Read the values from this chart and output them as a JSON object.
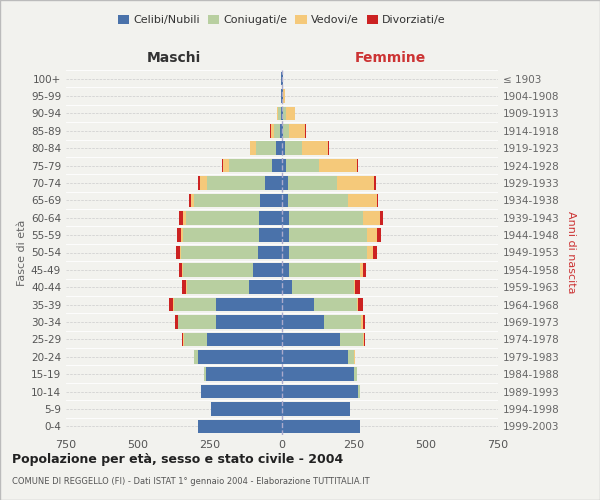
{
  "age_groups": [
    "0-4",
    "5-9",
    "10-14",
    "15-19",
    "20-24",
    "25-29",
    "30-34",
    "35-39",
    "40-44",
    "45-49",
    "50-54",
    "55-59",
    "60-64",
    "65-69",
    "70-74",
    "75-79",
    "80-84",
    "85-89",
    "90-94",
    "95-99",
    "100+"
  ],
  "birth_years": [
    "1999-2003",
    "1994-1998",
    "1989-1993",
    "1984-1988",
    "1979-1983",
    "1974-1978",
    "1969-1973",
    "1964-1968",
    "1959-1963",
    "1954-1958",
    "1949-1953",
    "1944-1948",
    "1939-1943",
    "1934-1938",
    "1929-1933",
    "1924-1928",
    "1919-1923",
    "1914-1918",
    "1909-1913",
    "1904-1908",
    "≤ 1903"
  ],
  "maschi": {
    "celibi": [
      290,
      245,
      280,
      265,
      290,
      260,
      230,
      230,
      115,
      100,
      85,
      80,
      80,
      75,
      60,
      35,
      20,
      8,
      5,
      2,
      2
    ],
    "coniugati": [
      0,
      0,
      2,
      5,
      15,
      80,
      130,
      145,
      215,
      245,
      265,
      265,
      255,
      230,
      200,
      150,
      70,
      20,
      8,
      2,
      1
    ],
    "vedovi": [
      0,
      0,
      0,
      0,
      0,
      5,
      2,
      2,
      2,
      2,
      5,
      5,
      8,
      10,
      25,
      20,
      20,
      10,
      5,
      0,
      0
    ],
    "divorziati": [
      0,
      0,
      0,
      0,
      0,
      2,
      8,
      15,
      15,
      12,
      12,
      15,
      15,
      8,
      5,
      5,
      2,
      2,
      0,
      0,
      0
    ]
  },
  "femmine": {
    "nubili": [
      270,
      235,
      265,
      250,
      230,
      200,
      145,
      110,
      35,
      25,
      25,
      25,
      25,
      20,
      20,
      15,
      10,
      5,
      5,
      2,
      2
    ],
    "coniugate": [
      0,
      0,
      5,
      10,
      20,
      80,
      130,
      150,
      215,
      245,
      270,
      270,
      255,
      210,
      170,
      115,
      60,
      20,
      10,
      3,
      0
    ],
    "vedove": [
      0,
      0,
      0,
      0,
      2,
      5,
      5,
      5,
      5,
      10,
      20,
      35,
      60,
      100,
      130,
      130,
      90,
      55,
      30,
      5,
      2
    ],
    "divorziate": [
      0,
      0,
      0,
      0,
      0,
      2,
      8,
      15,
      15,
      10,
      15,
      15,
      12,
      5,
      5,
      5,
      2,
      2,
      0,
      0,
      0
    ]
  },
  "colors": {
    "celibi": "#4a72aa",
    "coniugati": "#b8cfa0",
    "vedovi": "#f5c97a",
    "divorziati": "#cc2222"
  },
  "title": "Popolazione per età, sesso e stato civile - 2004",
  "subtitle": "COMUNE DI REGGELLO (FI) - Dati ISTAT 1° gennaio 2004 - Elaborazione TUTTITALIA.IT",
  "xlabel_left": "Maschi",
  "xlabel_right": "Femmine",
  "ylabel_left": "Fasce di età",
  "ylabel_right": "Anni di nascita",
  "xlim": 750,
  "legend_labels": [
    "Celibi/Nubili",
    "Coniugati/e",
    "Vedovi/e",
    "Divorziati/e"
  ],
  "background_color": "#f2f2ee"
}
